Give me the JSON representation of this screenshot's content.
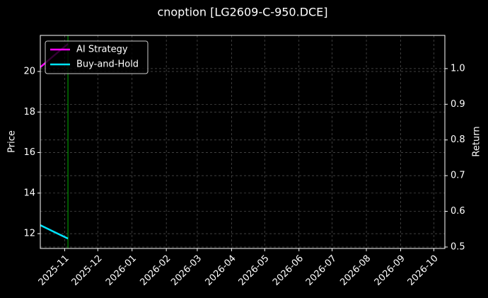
{
  "chart_data": {
    "type": "line",
    "title": "cnoption [LG2609-C-950.DCE]",
    "x": [
      "2025-10-10",
      "2025-10-22",
      "2025-11-04"
    ],
    "series": [
      {
        "name": "AI Strategy",
        "color": "#ff00ff",
        "values": [
          20.21,
          20.77,
          21.36
        ]
      },
      {
        "name": "Buy-and-Hold",
        "color": "#00e5ff",
        "values": [
          12.42,
          12.1,
          11.76
        ]
      }
    ],
    "vlines": [
      {
        "x": "2025-11-04",
        "color": "#00b000"
      }
    ],
    "xlim": [
      "2025-10-10",
      "2026-10-11"
    ],
    "xticks": [
      {
        "value": "2025-11-01",
        "label": "2025-11"
      },
      {
        "value": "2025-12-01",
        "label": "2025-12"
      },
      {
        "value": "2026-01-01",
        "label": "2026-01"
      },
      {
        "value": "2026-02-01",
        "label": "2026-02"
      },
      {
        "value": "2026-03-01",
        "label": "2026-03"
      },
      {
        "value": "2026-04-01",
        "label": "2026-04"
      },
      {
        "value": "2026-05-01",
        "label": "2026-05"
      },
      {
        "value": "2026-06-01",
        "label": "2026-06"
      },
      {
        "value": "2026-07-01",
        "label": "2026-07"
      },
      {
        "value": "2026-08-01",
        "label": "2026-08"
      },
      {
        "value": "2026-09-01",
        "label": "2026-09"
      },
      {
        "value": "2026-10-01",
        "label": "2026-10"
      }
    ],
    "ylabel": "Price",
    "ylim": [
      11.27,
      21.78
    ],
    "yticks": [
      12,
      14,
      16,
      18,
      20
    ],
    "y2label": "Return",
    "y2lim": [
      0.496,
      1.093
    ],
    "y2ticks": [
      0.5,
      0.6,
      0.7,
      0.8,
      0.9,
      {
        "value": 1,
        "label": "1.0"
      }
    ],
    "grid": true,
    "legend": "upper left"
  }
}
